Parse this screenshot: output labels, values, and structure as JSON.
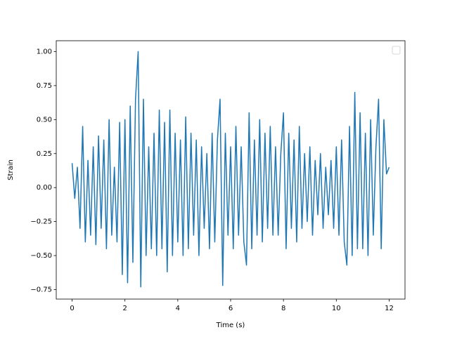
{
  "chart_data": {
    "type": "line",
    "xlabel": "Time (s)",
    "ylabel": "Strain",
    "color": "#1f77b4",
    "legend": "upper right",
    "x": [
      0,
      0.1,
      0.2,
      0.3,
      0.4,
      0.5,
      0.6,
      0.7,
      0.8,
      0.9,
      1,
      1.1,
      1.2,
      1.3,
      1.4,
      1.5,
      1.6,
      1.7,
      1.8,
      1.9,
      2,
      2.1,
      2.2,
      2.3,
      2.4,
      2.5,
      2.6,
      2.7,
      2.8,
      2.9,
      3,
      3.1,
      3.2,
      3.3,
      3.4,
      3.5,
      3.6,
      3.7,
      3.8,
      3.9,
      4,
      4.1,
      4.2,
      4.3,
      4.4,
      4.5,
      4.6,
      4.7,
      4.8,
      4.9,
      5,
      5.1,
      5.2,
      5.3,
      5.4,
      5.5,
      5.6,
      5.7,
      5.8,
      5.9,
      6,
      6.1,
      6.2,
      6.3,
      6.4,
      6.5,
      6.6,
      6.7,
      6.8,
      6.9,
      7,
      7.1,
      7.2,
      7.3,
      7.4,
      7.5,
      7.6,
      7.7,
      7.8,
      7.9,
      8,
      8.1,
      8.2,
      8.3,
      8.4,
      8.5,
      8.6,
      8.7,
      8.8,
      8.9,
      9,
      9.1,
      9.2,
      9.3,
      9.4,
      9.5,
      9.6,
      9.7,
      9.8,
      9.9,
      10,
      10.1,
      10.2,
      10.3,
      10.4,
      10.5,
      10.6,
      10.7,
      10.8,
      10.9,
      11,
      11.1,
      11.2,
      11.3,
      11.4,
      11.5,
      11.6,
      11.7,
      11.8,
      11.9,
      12
    ],
    "values": [
      0.18,
      -0.08,
      0.15,
      -0.3,
      0.45,
      -0.4,
      0.2,
      -0.35,
      0.3,
      -0.42,
      0.38,
      -0.3,
      0.35,
      -0.45,
      0.5,
      -0.35,
      0.15,
      -0.4,
      0.48,
      -0.64,
      0.5,
      -0.7,
      0.6,
      -0.55,
      0.65,
      1.0,
      -0.73,
      0.65,
      -0.5,
      0.3,
      -0.45,
      0.4,
      -0.5,
      0.57,
      -0.45,
      0.48,
      -0.62,
      0.57,
      -0.5,
      0.4,
      -0.4,
      0.35,
      -0.5,
      0.52,
      -0.45,
      0.4,
      -0.35,
      0.35,
      -0.5,
      0.3,
      -0.3,
      0.25,
      -0.45,
      0.4,
      -0.4,
      0.35,
      0.65,
      -0.72,
      0.4,
      -0.35,
      0.3,
      -0.45,
      0.45,
      -0.35,
      0.3,
      -0.4,
      -0.57,
      0.55,
      -0.45,
      0.35,
      -0.35,
      0.5,
      -0.4,
      0.4,
      -0.3,
      0.45,
      -0.35,
      0.3,
      -0.35,
      0.25,
      0.55,
      -0.45,
      0.4,
      -0.3,
      0.35,
      -0.4,
      0.45,
      -0.3,
      0.25,
      -0.25,
      0.3,
      -0.35,
      0.2,
      -0.2,
      0.25,
      -0.3,
      0.15,
      -0.2,
      0.2,
      -0.3,
      0.3,
      -0.35,
      0.35,
      -0.4,
      -0.57,
      0.45,
      -0.5,
      0.7,
      -0.45,
      0.55,
      -0.45,
      0.4,
      -0.5,
      0.5,
      -0.35,
      0.3,
      0.65,
      -0.45,
      0.5,
      0.1,
      0.15
    ],
    "xlim": [
      -0.6,
      12.6
    ],
    "xticks": [
      0,
      2,
      4,
      6,
      8,
      10,
      12
    ],
    "ylim": [
      -0.82,
      1.08
    ],
    "yticks": [
      {
        "value": -0.75,
        "label": "−0.75"
      },
      {
        "value": -0.5,
        "label": "−0.50"
      },
      {
        "value": -0.25,
        "label": "−0.25"
      },
      {
        "value": 0,
        "label": "0.00"
      },
      {
        "value": 0.25,
        "label": "0.25"
      },
      {
        "value": 0.5,
        "label": "0.50"
      },
      {
        "value": 0.75,
        "label": "0.75"
      },
      {
        "value": 1,
        "label": "1.00"
      }
    ]
  }
}
